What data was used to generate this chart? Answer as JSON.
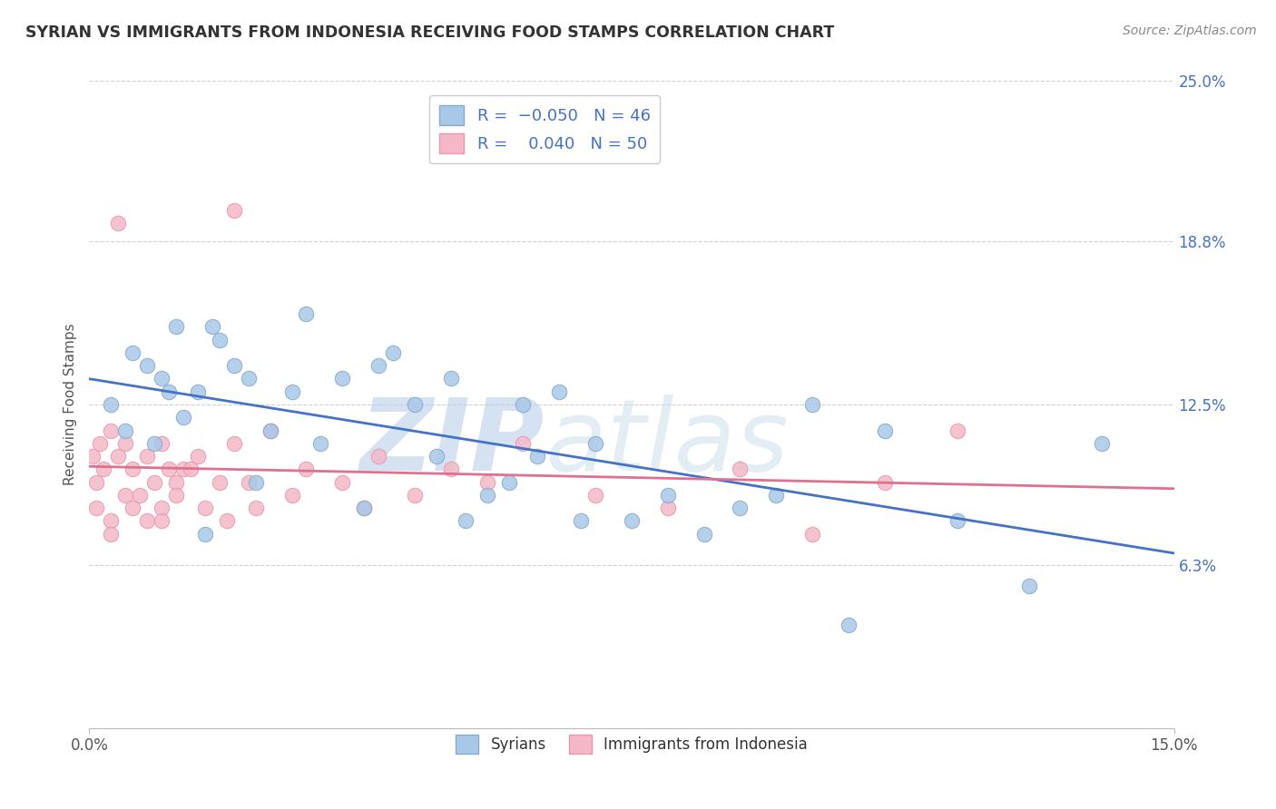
{
  "title": "SYRIAN VS IMMIGRANTS FROM INDONESIA RECEIVING FOOD STAMPS CORRELATION CHART",
  "source": "Source: ZipAtlas.com",
  "ylabel": "Receiving Food Stamps",
  "xlim": [
    0.0,
    15.0
  ],
  "ylim": [
    0.0,
    25.0
  ],
  "xtick_labels": [
    "0.0%",
    "15.0%"
  ],
  "ytick_labels": [
    "6.3%",
    "12.5%",
    "18.8%",
    "25.0%"
  ],
  "ytick_vals": [
    6.3,
    12.5,
    18.8,
    25.0
  ],
  "r1": -0.05,
  "n1": 46,
  "r2": 0.04,
  "n2": 50,
  "blue_color": "#a8c8e8",
  "pink_color": "#f4b8c8",
  "blue_line_color": "#4472c4",
  "pink_line_color": "#e07090",
  "watermark": "ZIPatlas",
  "watermark_color": "#c8d8ea",
  "grid_color": "#d0d0d0",
  "background_color": "#ffffff",
  "syrians_x": [
    0.5,
    1.0,
    1.2,
    0.8,
    1.5,
    0.3,
    0.6,
    1.8,
    2.0,
    1.3,
    0.9,
    1.1,
    2.2,
    2.5,
    1.7,
    3.0,
    2.8,
    3.5,
    4.0,
    3.2,
    4.5,
    4.2,
    5.0,
    5.5,
    6.0,
    6.5,
    5.8,
    7.0,
    7.5,
    6.2,
    8.0,
    9.0,
    9.5,
    10.0,
    11.0,
    12.0,
    13.0,
    14.0,
    8.5,
    4.8,
    3.8,
    2.3,
    1.6,
    5.2,
    6.8,
    10.5
  ],
  "syrians_y": [
    11.5,
    13.5,
    15.5,
    14.0,
    13.0,
    12.5,
    14.5,
    15.0,
    14.0,
    12.0,
    11.0,
    13.0,
    13.5,
    11.5,
    15.5,
    16.0,
    13.0,
    13.5,
    14.0,
    11.0,
    12.5,
    14.5,
    13.5,
    9.0,
    12.5,
    13.0,
    9.5,
    11.0,
    8.0,
    10.5,
    9.0,
    8.5,
    9.0,
    12.5,
    11.5,
    8.0,
    5.5,
    11.0,
    7.5,
    10.5,
    8.5,
    9.5,
    7.5,
    8.0,
    8.0,
    4.0
  ],
  "indonesia_x": [
    0.05,
    0.1,
    0.15,
    0.2,
    0.1,
    0.3,
    0.4,
    0.5,
    0.3,
    0.6,
    0.5,
    0.7,
    0.6,
    0.8,
    0.9,
    1.0,
    0.8,
    1.1,
    1.2,
    1.0,
    1.3,
    1.2,
    1.5,
    1.6,
    1.4,
    1.8,
    2.0,
    1.9,
    2.2,
    2.5,
    2.3,
    3.0,
    2.8,
    3.5,
    4.0,
    3.8,
    4.5,
    5.0,
    5.5,
    6.0,
    7.0,
    8.0,
    9.0,
    10.0,
    11.0,
    12.0,
    2.0,
    0.4,
    0.3,
    1.0
  ],
  "indonesia_y": [
    10.5,
    9.5,
    11.0,
    10.0,
    8.5,
    11.5,
    10.5,
    9.0,
    8.0,
    10.0,
    11.0,
    9.0,
    8.5,
    10.5,
    9.5,
    11.0,
    8.0,
    10.0,
    9.5,
    8.5,
    10.0,
    9.0,
    10.5,
    8.5,
    10.0,
    9.5,
    11.0,
    8.0,
    9.5,
    11.5,
    8.5,
    10.0,
    9.0,
    9.5,
    10.5,
    8.5,
    9.0,
    10.0,
    9.5,
    11.0,
    9.0,
    8.5,
    10.0,
    7.5,
    9.5,
    11.5,
    20.0,
    19.5,
    7.5,
    8.0
  ]
}
